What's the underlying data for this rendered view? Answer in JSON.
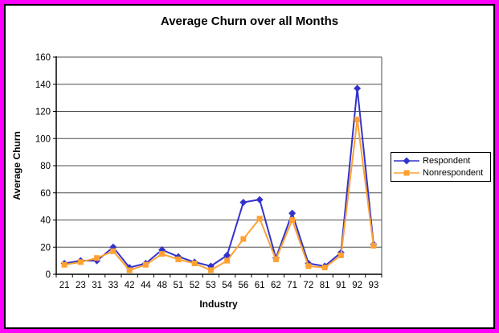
{
  "page": {
    "outer_border_color": "#FF00FF",
    "inner_border_color": "#000000",
    "background": "#FFFFFF"
  },
  "chart_data": {
    "type": "line",
    "title": "Average Churn over all Months",
    "xlabel": "Industry",
    "ylabel": "Average Churn",
    "ylim": [
      0,
      160
    ],
    "ytick_step": 20,
    "ytick_labels": [
      "0",
      "20",
      "40",
      "60",
      "80",
      "100",
      "120",
      "140",
      "160"
    ],
    "grid": true,
    "legend_position": "right",
    "categories": [
      "21",
      "23",
      "31",
      "33",
      "42",
      "44",
      "48",
      "51",
      "52",
      "53",
      "54",
      "56",
      "61",
      "62",
      "71",
      "72",
      "81",
      "91",
      "92",
      "93"
    ],
    "series": [
      {
        "name": "Respondent",
        "color": "#3333CC",
        "marker": "diamond",
        "values": [
          8,
          10,
          10,
          20,
          5,
          8,
          18,
          13,
          9,
          6,
          14,
          53,
          55,
          12,
          45,
          8,
          6,
          16,
          137,
          22
        ]
      },
      {
        "name": "Nonrespondent",
        "color": "#FFA133",
        "marker": "square",
        "values": [
          7,
          9,
          12,
          17,
          3,
          7,
          15,
          11,
          8,
          3,
          10,
          26,
          41,
          11,
          40,
          6,
          5,
          14,
          114,
          21
        ]
      }
    ]
  }
}
